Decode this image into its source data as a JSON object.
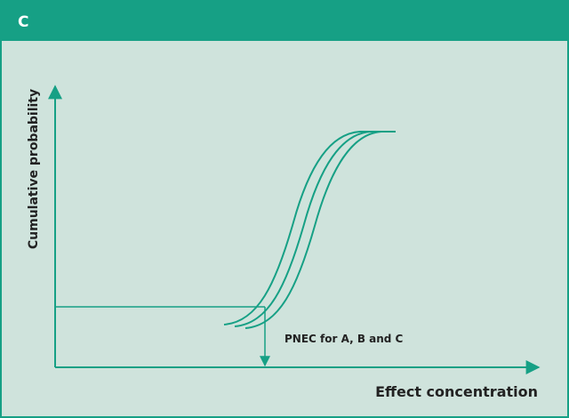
{
  "header": {
    "title": "C"
  },
  "diagram": {
    "y_axis_label": "Cumulative probability",
    "x_axis_label": "Effect concentration",
    "annotation": "PNEC for A, B and C"
  }
}
